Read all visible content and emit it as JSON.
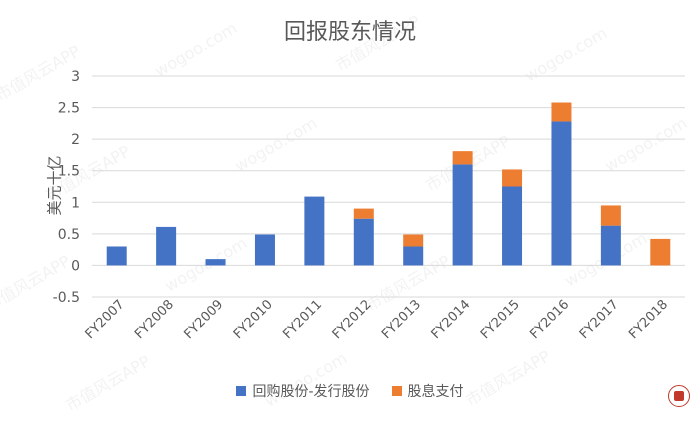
{
  "chart_data": {
    "type": "bar",
    "stacked": true,
    "title": "回报股东情况",
    "ylabel": "美元十亿",
    "xlabel": "",
    "ylim": [
      -0.5,
      3
    ],
    "yticks": [
      "3",
      "2.5",
      "2",
      "1.5",
      "1",
      "0.5",
      "0",
      "-0.5"
    ],
    "grid": true,
    "legend_position": "bottom",
    "categories": [
      "FY2007",
      "FY2008",
      "FY2009",
      "FY2010",
      "FY2011",
      "FY2012",
      "FY2013",
      "FY2014",
      "FY2015",
      "FY2016",
      "FY2017",
      "FY2018"
    ],
    "series": [
      {
        "name": "回购股份-发行股份",
        "color": "#4472C4",
        "values": [
          0.3,
          0.61,
          0.1,
          0.49,
          1.09,
          0.74,
          0.3,
          1.6,
          1.25,
          2.28,
          0.63,
          0.0
        ]
      },
      {
        "name": "股息支付",
        "color": "#ED7D31",
        "values": [
          0.0,
          0.0,
          0.0,
          0.0,
          0.0,
          0.16,
          0.19,
          0.21,
          0.27,
          0.3,
          0.32,
          0.42
        ]
      }
    ]
  },
  "watermark": {
    "text_app": "市值风云APP",
    "text_site": "wogoo.com"
  }
}
